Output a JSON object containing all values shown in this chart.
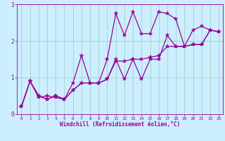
{
  "xlabel": "Windchill (Refroidissement éolien,°C)",
  "background_color": "#cceeff",
  "grid_color": "#99ccbb",
  "line_color": "#990099",
  "xlim": [
    -0.5,
    23.5
  ],
  "ylim": [
    0,
    3.0
  ],
  "yticks": [
    0,
    1,
    2,
    3
  ],
  "xticks": [
    0,
    1,
    2,
    3,
    4,
    5,
    6,
    7,
    8,
    9,
    10,
    11,
    12,
    13,
    14,
    15,
    16,
    17,
    18,
    19,
    20,
    21,
    22,
    23
  ],
  "series": [
    [
      0.2,
      0.9,
      0.45,
      0.5,
      0.45,
      0.4,
      0.85,
      1.6,
      0.85,
      0.85,
      1.5,
      2.75,
      2.15,
      2.8,
      2.2,
      2.2,
      2.8,
      2.75,
      2.6,
      1.85,
      2.3,
      2.4,
      2.3,
      2.25
    ],
    [
      0.2,
      0.9,
      0.5,
      0.4,
      0.5,
      0.4,
      0.65,
      0.85,
      0.85,
      0.85,
      0.95,
      1.5,
      0.95,
      1.5,
      0.95,
      1.5,
      1.5,
      2.15,
      1.85,
      1.85,
      1.9,
      1.9,
      2.3,
      2.25
    ],
    [
      0.2,
      0.9,
      0.5,
      0.4,
      0.5,
      0.4,
      0.65,
      0.85,
      0.85,
      0.85,
      0.95,
      1.45,
      1.45,
      1.5,
      1.5,
      1.55,
      1.6,
      1.85,
      1.85,
      1.85,
      1.9,
      1.9,
      2.3,
      2.25
    ]
  ]
}
